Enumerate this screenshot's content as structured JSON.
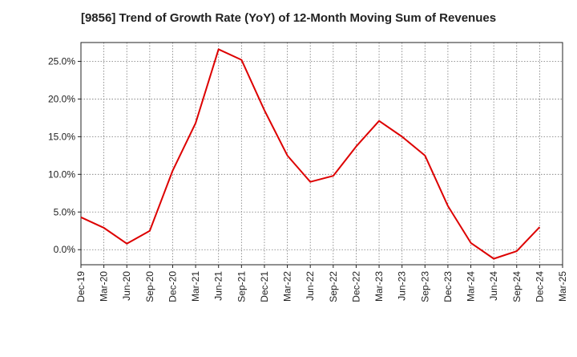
{
  "chart_data": {
    "type": "line",
    "title": "[9856]  Trend of Growth Rate (YoY) of 12-Month Moving Sum of Revenues",
    "xlabel": "",
    "ylabel": "",
    "ylim": [
      -2.0,
      27.5
    ],
    "yticks": [
      "0.0%",
      "5.0%",
      "10.0%",
      "15.0%",
      "20.0%",
      "25.0%"
    ],
    "ytick_values": [
      0,
      5,
      10,
      15,
      20,
      25
    ],
    "x_tick_labels": [
      "Dec-19",
      "Mar-20",
      "Jun-20",
      "Sep-20",
      "Dec-20",
      "Mar-21",
      "Jun-21",
      "Sep-21",
      "Dec-21",
      "Mar-22",
      "Jun-22",
      "Sep-22",
      "Dec-22",
      "Mar-23",
      "Jun-23",
      "Sep-23",
      "Dec-23",
      "Mar-24",
      "Jun-24",
      "Sep-24",
      "Dec-24",
      "Mar-25"
    ],
    "grid": true,
    "series": [
      {
        "color": "#dd0000",
        "x": [
          "Dec-19",
          "Mar-20",
          "Jun-20",
          "Sep-20",
          "Dec-20",
          "Mar-21",
          "Jun-21",
          "Sep-21",
          "Dec-21",
          "Mar-22",
          "Jun-22",
          "Sep-22",
          "Dec-22",
          "Mar-23",
          "Jun-23",
          "Sep-23",
          "Dec-23",
          "Mar-24",
          "Jun-24",
          "Sep-24",
          "Dec-24"
        ],
        "values": [
          4.3,
          2.9,
          0.8,
          2.5,
          10.5,
          16.8,
          26.6,
          25.2,
          18.5,
          12.5,
          9.0,
          9.8,
          13.7,
          17.1,
          15.0,
          12.5,
          5.8,
          0.9,
          -1.2,
          -0.2,
          3.0
        ]
      }
    ]
  }
}
